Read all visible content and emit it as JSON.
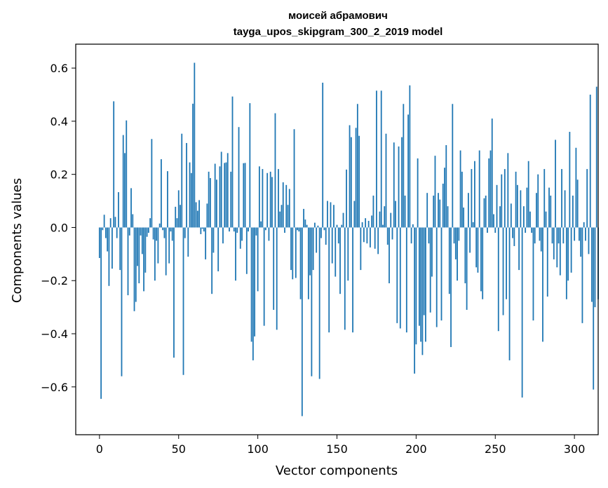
{
  "chart_data": {
    "type": "bar",
    "title": "моисей абрамович",
    "subtitle": "tayga_upos_skipgram_300_2_2019 model",
    "xlabel": "Vector components",
    "ylabel": "Components values",
    "xlim": [
      -15,
      315
    ],
    "ylim": [
      -0.78,
      0.69
    ],
    "xticks": [
      0,
      50,
      100,
      150,
      200,
      250,
      300
    ],
    "xtick_labels": [
      "0",
      "50",
      "100",
      "150",
      "200",
      "250",
      "300"
    ],
    "yticks": [
      -0.6,
      -0.4,
      -0.2,
      0.0,
      0.2,
      0.4,
      0.6
    ],
    "ytick_labels": [
      "−0.6",
      "−0.4",
      "−0.2",
      "0.0",
      "0.2",
      "0.4",
      "0.6"
    ],
    "bar_color": "#1f77b4",
    "grid": false,
    "values": [
      -0.115,
      -0.645,
      -0.01,
      0.048,
      -0.04,
      -0.09,
      -0.22,
      0.035,
      -0.155,
      0.475,
      0.04,
      -0.04,
      0.133,
      -0.16,
      -0.56,
      0.348,
      0.28,
      0.403,
      -0.255,
      -0.03,
      0.148,
      0.05,
      -0.315,
      -0.28,
      -0.145,
      -0.21,
      -0.03,
      -0.1,
      -0.24,
      -0.17,
      -0.035,
      -0.02,
      0.035,
      0.333,
      -0.045,
      -0.2,
      -0.05,
      -0.135,
      0.015,
      0.257,
      -0.01,
      -0.04,
      -0.18,
      0.212,
      -0.135,
      -0.015,
      -0.05,
      -0.49,
      0.078,
      0.035,
      0.14,
      0.085,
      0.353,
      -0.555,
      -0.04,
      0.318,
      -0.11,
      0.245,
      0.205,
      0.466,
      0.62,
      0.095,
      0.063,
      0.103,
      -0.025,
      -0.005,
      -0.015,
      -0.12,
      0.09,
      0.21,
      0.186,
      -0.25,
      -0.095,
      0.24,
      0.18,
      -0.165,
      0.23,
      0.285,
      -0.06,
      0.243,
      0.245,
      0.28,
      -0.015,
      0.21,
      0.493,
      -0.015,
      -0.2,
      -0.02,
      0.378,
      -0.08,
      -0.05,
      0.242,
      0.243,
      -0.175,
      -0.015,
      0.468,
      -0.43,
      -0.5,
      -0.41,
      -0.03,
      -0.24,
      0.23,
      0.023,
      0.22,
      -0.37,
      -0.01,
      0.205,
      -0.05,
      0.21,
      0.19,
      -0.31,
      0.43,
      -0.385,
      0.22,
      0.06,
      0.085,
      0.17,
      -0.02,
      0.16,
      0.085,
      0.145,
      -0.16,
      -0.195,
      0.37,
      -0.19,
      -0.01,
      -0.015,
      -0.27,
      -0.71,
      0.07,
      0.03,
      0.01,
      -0.27,
      -0.18,
      -0.56,
      -0.16,
      0.018,
      -0.095,
      0.007,
      -0.57,
      -0.04,
      0.545,
      -0.01,
      -0.065,
      0.1,
      -0.395,
      0.095,
      -0.135,
      0.085,
      -0.185,
      0.01,
      -0.06,
      -0.25,
      0.01,
      0.055,
      -0.385,
      0.218,
      -0.2,
      0.385,
      0.34,
      -0.395,
      0.1,
      0.375,
      0.465,
      0.345,
      -0.16,
      0.02,
      -0.055,
      0.035,
      -0.06,
      0.025,
      -0.075,
      0.045,
      0.12,
      -0.08,
      0.515,
      -0.1,
      0.06,
      0.515,
      0.01,
      0.08,
      0.353,
      -0.065,
      -0.21,
      0.055,
      -0.045,
      0.32,
      0.1,
      -0.36,
      0.305,
      -0.38,
      0.34,
      0.465,
      0.12,
      -0.395,
      0.425,
      0.535,
      -0.06,
      0.012,
      -0.55,
      -0.44,
      0.26,
      -0.37,
      -0.43,
      -0.48,
      -0.33,
      -0.43,
      0.13,
      -0.06,
      -0.32,
      -0.185,
      0.12,
      0.27,
      -0.375,
      0.13,
      0.105,
      -0.35,
      0.165,
      0.225,
      0.31,
      0.08,
      -0.25,
      -0.45,
      0.465,
      -0.06,
      -0.12,
      -0.2,
      -0.05,
      0.29,
      0.21,
      0.075,
      -0.21,
      -0.31,
      0.13,
      -0.095,
      0.22,
      0.02,
      0.25,
      -0.15,
      -0.17,
      0.29,
      -0.24,
      -0.27,
      0.11,
      0.12,
      -0.02,
      0.26,
      0.29,
      0.41,
      0.05,
      -0.02,
      0.16,
      -0.39,
      0.08,
      0.2,
      -0.33,
      0.22,
      -0.27,
      0.28,
      -0.5,
      0.09,
      -0.04,
      -0.07,
      0.21,
      0.16,
      -0.16,
      0.14,
      -0.64,
      0.08,
      -0.02,
      0.15,
      0.25,
      0.06,
      -0.02,
      -0.35,
      -0.06,
      0.13,
      0.2,
      -0.05,
      -0.09,
      -0.43,
      0.22,
      0.06,
      -0.26,
      0.15,
      0.12,
      -0.06,
      -0.12,
      0.33,
      -0.15,
      -0.06,
      -0.18,
      0.22,
      -0.06,
      0.14,
      -0.27,
      -0.2,
      0.36,
      -0.17,
      0.12,
      -0.05,
      0.3,
      0.18,
      -0.05,
      -0.11,
      -0.36,
      0.02,
      -0.05,
      0.22,
      -0.1,
      0.5,
      -0.28,
      -0.61,
      -0.3,
      0.53,
      -0.27
    ]
  }
}
